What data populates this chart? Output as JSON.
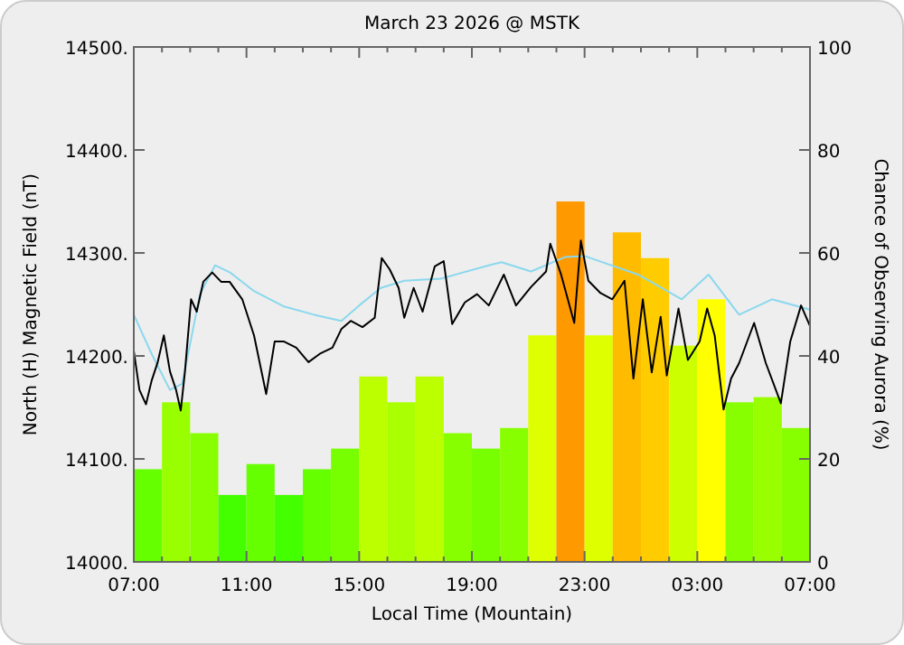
{
  "chart_data": {
    "type": "line",
    "title": "March 23 2026 @ MSTK",
    "xlabel": "Local Time (Mountain)",
    "ylabel": "North (H) Magnetic Field (nT)",
    "y2label": "Chance of Observing Aurora (%)",
    "xlim": [
      "2026-03-23T07:00",
      "2026-03-24T07:00"
    ],
    "xticks": [
      {
        "value": "2026-03-23T07:00",
        "label": "07:00"
      },
      {
        "value": "2026-03-23T08:00",
        "label": null
      },
      {
        "value": "2026-03-23T09:00",
        "label": null
      },
      {
        "value": "2026-03-23T10:00",
        "label": null
      },
      {
        "value": "2026-03-23T11:00",
        "label": "11:00"
      },
      {
        "value": "2026-03-23T12:00",
        "label": null
      },
      {
        "value": "2026-03-23T13:00",
        "label": null
      },
      {
        "value": "2026-03-23T14:00",
        "label": null
      },
      {
        "value": "2026-03-23T15:00",
        "label": "15:00"
      },
      {
        "value": "2026-03-23T16:00",
        "label": null
      },
      {
        "value": "2026-03-23T17:00",
        "label": null
      },
      {
        "value": "2026-03-23T18:00",
        "label": null
      },
      {
        "value": "2026-03-23T19:00",
        "label": "19:00"
      },
      {
        "value": "2026-03-23T20:00",
        "label": null
      },
      {
        "value": "2026-03-23T21:00",
        "label": null
      },
      {
        "value": "2026-03-23T22:00",
        "label": null
      },
      {
        "value": "2026-03-23T23:00",
        "label": "23:00"
      },
      {
        "value": "2026-03-24T00:00",
        "label": null
      },
      {
        "value": "2026-03-24T01:00",
        "label": null
      },
      {
        "value": "2026-03-24T02:00",
        "label": null
      },
      {
        "value": "2026-03-24T03:00",
        "label": "03:00"
      },
      {
        "value": "2026-03-24T04:00",
        "label": null
      },
      {
        "value": "2026-03-24T05:00",
        "label": null
      },
      {
        "value": "2026-03-24T06:00",
        "label": null
      },
      {
        "value": "2026-03-24T07:00",
        "label": "07:00"
      }
    ],
    "ylim": [
      14000,
      14500
    ],
    "yticks": [
      {
        "value": 14000,
        "label": "14000."
      },
      {
        "value": 14100,
        "label": "14100."
      },
      {
        "value": 14200,
        "label": "14200."
      },
      {
        "value": 14300,
        "label": "14300."
      },
      {
        "value": 14400,
        "label": "14400."
      },
      {
        "value": 14500,
        "label": "14500."
      }
    ],
    "y2lim": [
      0,
      100
    ],
    "y2ticks": [
      0,
      20,
      40,
      60,
      80,
      100
    ],
    "grid": false,
    "series": [
      {
        "type": "bar",
        "axis": "y2",
        "x": [
          "2026-03-23T07:30",
          "2026-03-23T08:30",
          "2026-03-23T09:30",
          "2026-03-23T10:30",
          "2026-03-23T11:30",
          "2026-03-23T12:30",
          "2026-03-23T13:30",
          "2026-03-23T14:30",
          "2026-03-23T15:30",
          "2026-03-23T16:30",
          "2026-03-23T17:30",
          "2026-03-23T18:30",
          "2026-03-23T19:30",
          "2026-03-23T20:30",
          "2026-03-23T21:30",
          "2026-03-23T22:30",
          "2026-03-23T23:30",
          "2026-03-24T00:30",
          "2026-03-24T01:30",
          "2026-03-24T02:30",
          "2026-03-24T03:30",
          "2026-03-24T04:30",
          "2026-03-24T05:30",
          "2026-03-24T06:30"
        ],
        "values": [
          18,
          31,
          25,
          13,
          19,
          13,
          18,
          22,
          36,
          31,
          36,
          25,
          22,
          26,
          44,
          70,
          44,
          64,
          59,
          42,
          51,
          31,
          32,
          26
        ],
        "colors": [
          "#66ff00",
          "#99ff00",
          "#88ff00",
          "#44ff00",
          "#66ff00",
          "#44ff00",
          "#66ff00",
          "#77ff00",
          "#bbff00",
          "#aaff00",
          "#bbff00",
          "#88ff00",
          "#77ff00",
          "#88ff00",
          "#ddff00",
          "#ff9900",
          "#ddff00",
          "#ffbb00",
          "#ffcc00",
          "#ccff00",
          "#ffff00",
          "#88ff00",
          "#99ff00",
          "#88ff00"
        ]
      },
      {
        "color": "#8ad8ee",
        "x": [
          "2026-03-23T07:00",
          "2026-03-23T07:38",
          "2026-03-23T08:17",
          "2026-03-23T08:43",
          "2026-03-23T09:21",
          "2026-03-23T09:53",
          "2026-03-23T10:25",
          "2026-03-23T11:16",
          "2026-03-23T12:20",
          "2026-03-23T13:24",
          "2026-03-23T14:22",
          "2026-03-23T15:00",
          "2026-03-23T15:46",
          "2026-03-23T16:36",
          "2026-03-23T17:54",
          "2026-03-23T19:36",
          "2026-03-23T20:03",
          "2026-03-23T21:06",
          "2026-03-23T22:18",
          "2026-03-23T23:00",
          "2026-03-24T00:54",
          "2026-03-24T02:27",
          "2026-03-24T03:24",
          "2026-03-24T04:29",
          "2026-03-24T05:39",
          "2026-03-24T07:00"
        ],
        "values": [
          14240,
          14202,
          14167,
          14173,
          14260,
          14288,
          14281,
          14263,
          14248,
          14240,
          14234,
          14249,
          14266,
          14273,
          14275,
          14288,
          14291,
          14282,
          14296,
          14297,
          14279,
          14255,
          14279,
          14240,
          14255,
          14245
        ]
      },
      {
        "color": "#000000",
        "x": [
          "2026-03-23T07:00",
          "2026-03-23T07:12",
          "2026-03-23T07:26",
          "2026-03-23T07:38",
          "2026-03-23T07:51",
          "2026-03-23T08:04",
          "2026-03-23T08:17",
          "2026-03-23T08:30",
          "2026-03-23T08:40",
          "2026-03-23T08:49",
          "2026-03-23T09:02",
          "2026-03-23T09:14",
          "2026-03-23T09:28",
          "2026-03-23T09:47",
          "2026-03-23T10:06",
          "2026-03-23T10:24",
          "2026-03-23T10:51",
          "2026-03-23T11:16",
          "2026-03-23T11:42",
          "2026-03-23T12:00",
          "2026-03-23T12:20",
          "2026-03-23T12:46",
          "2026-03-23T13:12",
          "2026-03-23T13:36",
          "2026-03-23T14:03",
          "2026-03-23T14:22",
          "2026-03-23T14:42",
          "2026-03-23T15:07",
          "2026-03-23T15:33",
          "2026-03-23T15:48",
          "2026-03-23T16:05",
          "2026-03-23T16:24",
          "2026-03-23T16:36",
          "2026-03-23T16:56",
          "2026-03-23T17:15",
          "2026-03-23T17:41",
          "2026-03-23T18:00",
          "2026-03-23T18:18",
          "2026-03-23T18:45",
          "2026-03-23T19:11",
          "2026-03-23T19:36",
          "2026-03-23T20:08",
          "2026-03-23T20:34",
          "2026-03-23T21:06",
          "2026-03-23T21:38",
          "2026-03-23T21:47",
          "2026-03-23T22:10",
          "2026-03-23T22:38",
          "2026-03-23T22:52",
          "2026-03-23T23:08",
          "2026-03-23T23:34",
          "2026-03-23T23:59",
          "2026-03-24T00:25",
          "2026-03-24T00:44",
          "2026-03-24T01:04",
          "2026-03-24T01:23",
          "2026-03-24T01:42",
          "2026-03-24T01:55",
          "2026-03-24T02:20",
          "2026-03-24T02:40",
          "2026-03-24T03:05",
          "2026-03-24T03:21",
          "2026-03-24T03:37",
          "2026-03-24T03:56",
          "2026-03-24T04:12",
          "2026-03-24T04:29",
          "2026-03-24T05:01",
          "2026-03-24T05:26",
          "2026-03-24T05:58",
          "2026-03-24T06:18",
          "2026-03-24T06:41",
          "2026-03-24T07:00"
        ],
        "values": [
          14205,
          14167,
          14153,
          14176,
          14194,
          14220,
          14185,
          14167,
          14147,
          14185,
          14255,
          14243,
          14272,
          14281,
          14272,
          14272,
          14255,
          14220,
          14163,
          14214,
          14214,
          14208,
          14194,
          14202,
          14208,
          14226,
          14234,
          14228,
          14237,
          14295,
          14284,
          14266,
          14237,
          14266,
          14243,
          14287,
          14292,
          14231,
          14252,
          14260,
          14249,
          14279,
          14249,
          14267,
          14282,
          14309,
          14279,
          14232,
          14312,
          14273,
          14261,
          14255,
          14273,
          14178,
          14255,
          14184,
          14238,
          14181,
          14246,
          14196,
          14214,
          14246,
          14220,
          14148,
          14178,
          14193,
          14232,
          14193,
          14154,
          14214,
          14249,
          14229
        ]
      }
    ]
  }
}
